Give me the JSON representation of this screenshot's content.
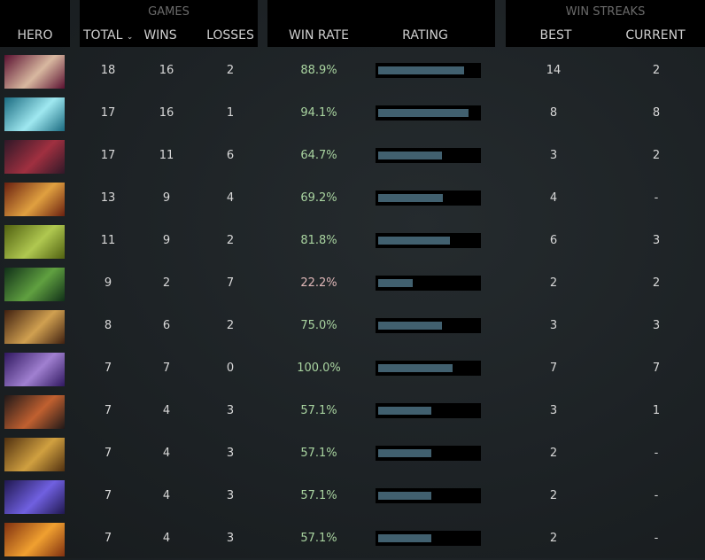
{
  "header": {
    "hero": "HERO",
    "games": "GAMES",
    "total": "TOTAL",
    "sort_icon": "chevron-down-icon",
    "wins": "WINS",
    "losses": "LOSSES",
    "win_rate": "WIN RATE",
    "rating": "RATING",
    "win_streaks": "WIN STREAKS",
    "best": "BEST",
    "current": "CURRENT"
  },
  "colors": {
    "win_rate_good": "#a9d4a0",
    "win_rate_bad": "#e0b8b8",
    "bar_fill": "#41606f"
  },
  "rows": [
    {
      "portrait": [
        "#5a1030",
        "#d8b8a0"
      ],
      "total": "18",
      "wins": "16",
      "losses": "2",
      "win_rate": "88.9%",
      "rating": 0.84,
      "best": "14",
      "current": "2"
    },
    {
      "portrait": [
        "#1a6a80",
        "#9fe8f0"
      ],
      "total": "17",
      "wins": "16",
      "losses": "1",
      "win_rate": "94.1%",
      "rating": 0.88,
      "best": "8",
      "current": "8"
    },
    {
      "portrait": [
        "#301828",
        "#a03040"
      ],
      "total": "17",
      "wins": "11",
      "losses": "6",
      "win_rate": "64.7%",
      "rating": 0.62,
      "best": "3",
      "current": "2"
    },
    {
      "portrait": [
        "#6a2010",
        "#e0a040"
      ],
      "total": "13",
      "wins": "9",
      "losses": "4",
      "win_rate": "69.2%",
      "rating": 0.63,
      "best": "4",
      "current": "-"
    },
    {
      "portrait": [
        "#506010",
        "#b0c850"
      ],
      "total": "11",
      "wins": "9",
      "losses": "2",
      "win_rate": "81.8%",
      "rating": 0.7,
      "best": "6",
      "current": "3"
    },
    {
      "portrait": [
        "#103018",
        "#60a040"
      ],
      "total": "9",
      "wins": "2",
      "losses": "7",
      "win_rate": "22.2%",
      "rating": 0.34,
      "best": "2",
      "current": "2",
      "bad": true
    },
    {
      "portrait": [
        "#402010",
        "#d0a050"
      ],
      "total": "8",
      "wins": "6",
      "losses": "2",
      "win_rate": "75.0%",
      "rating": 0.62,
      "best": "3",
      "current": "3"
    },
    {
      "portrait": [
        "#301860",
        "#a080d0"
      ],
      "total": "7",
      "wins": "7",
      "losses": "0",
      "win_rate": "100.0%",
      "rating": 0.72,
      "best": "7",
      "current": "7"
    },
    {
      "portrait": [
        "#201818",
        "#c06030"
      ],
      "total": "7",
      "wins": "4",
      "losses": "3",
      "win_rate": "57.1%",
      "rating": 0.52,
      "best": "3",
      "current": "1"
    },
    {
      "portrait": [
        "#503010",
        "#d0a040"
      ],
      "total": "7",
      "wins": "4",
      "losses": "3",
      "win_rate": "57.1%",
      "rating": 0.52,
      "best": "2",
      "current": "-"
    },
    {
      "portrait": [
        "#201850",
        "#7060e0"
      ],
      "total": "7",
      "wins": "4",
      "losses": "3",
      "win_rate": "57.1%",
      "rating": 0.52,
      "best": "2",
      "current": "-"
    },
    {
      "portrait": [
        "#803010",
        "#f0a030"
      ],
      "total": "7",
      "wins": "4",
      "losses": "3",
      "win_rate": "57.1%",
      "rating": 0.52,
      "best": "2",
      "current": "-"
    }
  ]
}
